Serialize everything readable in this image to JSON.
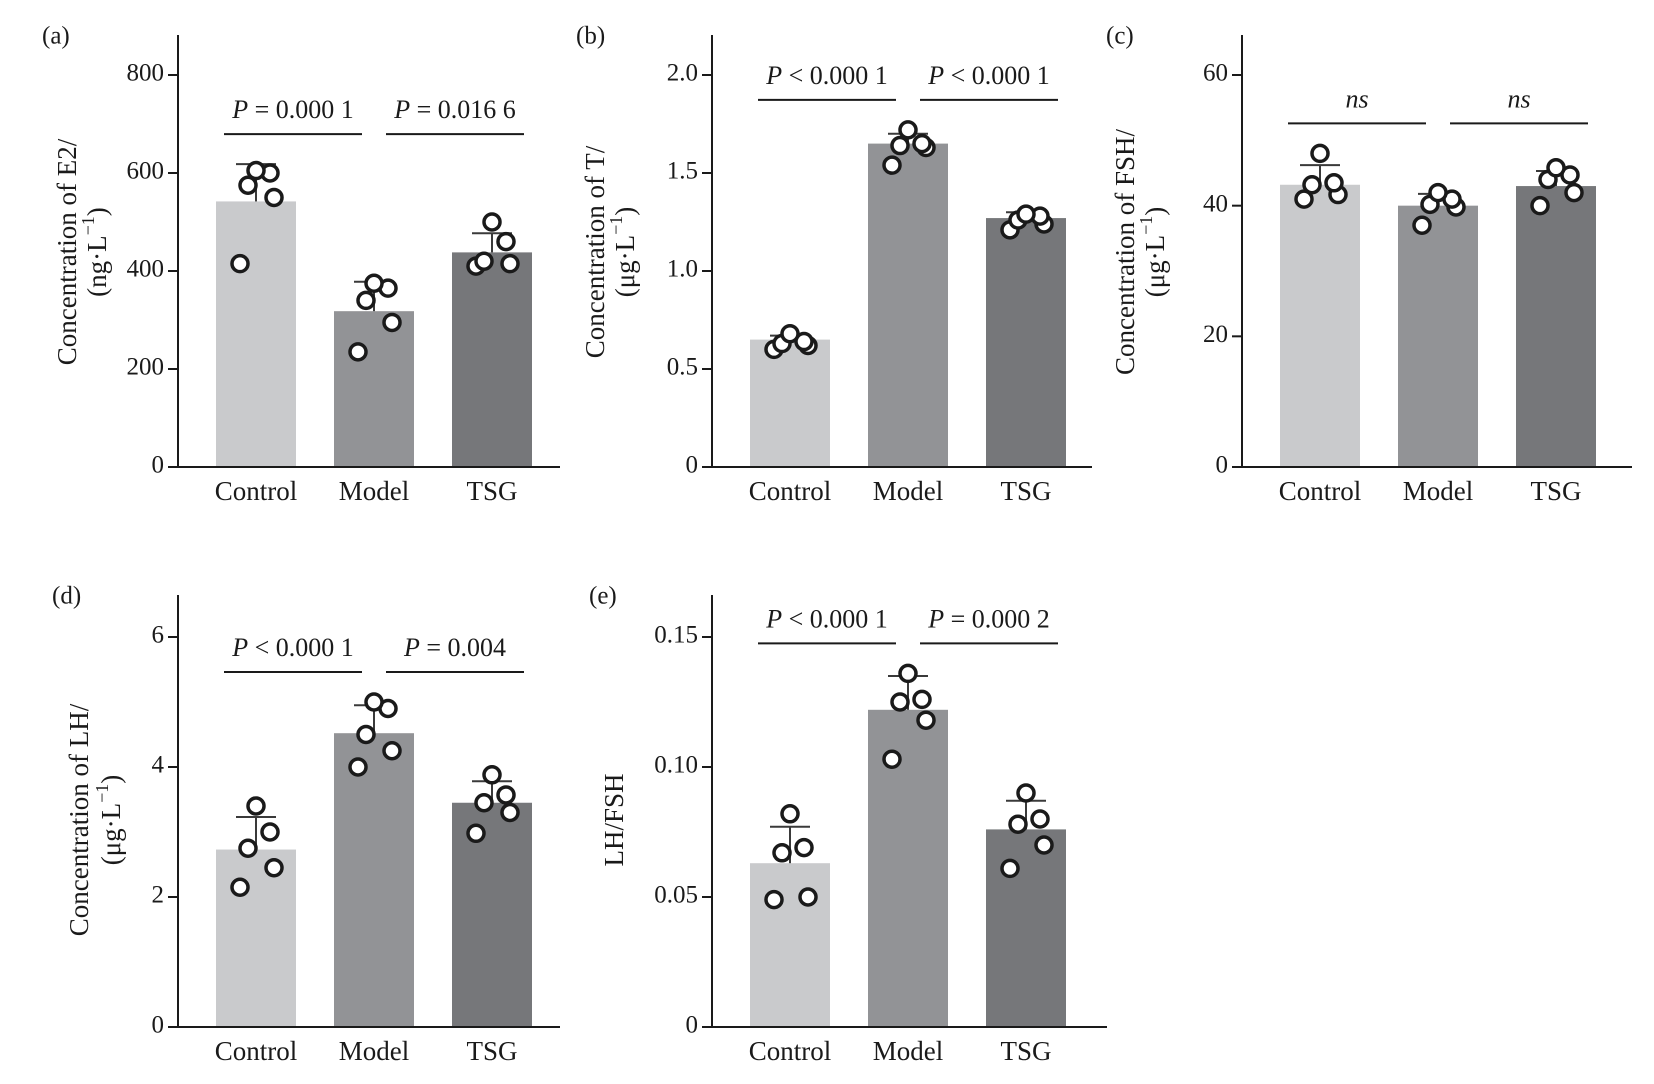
{
  "colors": {
    "Control": "#c9cacc",
    "Model": "#929396",
    "TSG": "#76777a",
    "axis": "#1a1a1a"
  },
  "chart_data": [
    {
      "panel": "(a)",
      "type": "bar",
      "ylabel": "Concentration of E2/",
      "yunit": [
        "(ng·L",
        "−1",
        ")"
      ],
      "ylim": [
        0,
        800
      ],
      "yticks": [
        0,
        200,
        400,
        600,
        800
      ],
      "ytick_labels": [
        "0",
        "200",
        "400",
        "600",
        "800"
      ],
      "categories": [
        "Control",
        "Model",
        "TSG"
      ],
      "values": [
        542,
        318,
        438
      ],
      "error_upper": [
        618,
        378,
        477
      ],
      "points": [
        [
          415,
          550,
          575,
          600,
          605
        ],
        [
          235,
          295,
          340,
          365,
          375
        ],
        [
          410,
          415,
          420,
          460,
          500
        ]
      ],
      "comparisons": [
        {
          "from": 0,
          "to": 1,
          "label": {
            "p": "P",
            "rest": " = 0.000 1"
          }
        },
        {
          "from": 1,
          "to": 2,
          "label": {
            "p": "P",
            "rest": " = 0.016 6"
          }
        }
      ]
    },
    {
      "panel": "(b)",
      "type": "bar",
      "ylabel": "Concentration of T/",
      "yunit": [
        "(μg·L",
        "−1",
        ")"
      ],
      "ylim": [
        0,
        2.0
      ],
      "yticks": [
        0,
        0.5,
        1.0,
        1.5,
        2.0
      ],
      "ytick_labels": [
        "0",
        "0.5",
        "1.0",
        "1.5",
        "2.0"
      ],
      "categories": [
        "Control",
        "Model",
        "TSG"
      ],
      "values": [
        0.65,
        1.65,
        1.27
      ],
      "error_upper": [
        0.67,
        1.7,
        1.3
      ],
      "points": [
        [
          0.6,
          0.62,
          0.63,
          0.64,
          0.68
        ],
        [
          1.54,
          1.63,
          1.64,
          1.65,
          1.72
        ],
        [
          1.21,
          1.24,
          1.26,
          1.28,
          1.29
        ]
      ],
      "comparisons": [
        {
          "from": 0,
          "to": 1,
          "label": {
            "p": "P",
            "rest": " < 0.000 1"
          }
        },
        {
          "from": 1,
          "to": 2,
          "label": {
            "p": "P",
            "rest": " < 0.000 1"
          }
        }
      ]
    },
    {
      "panel": "(c)",
      "type": "bar",
      "ylabel": "Concentration of FSH/",
      "yunit": [
        "(μg·L",
        "−1",
        ")"
      ],
      "ylim": [
        0,
        60
      ],
      "yticks": [
        0,
        20,
        40,
        60
      ],
      "ytick_labels": [
        "0",
        "20",
        "40",
        "60"
      ],
      "categories": [
        "Control",
        "Model",
        "TSG"
      ],
      "values": [
        43.2,
        40.0,
        43.0
      ],
      "error_upper": [
        46.2,
        41.8,
        45.3
      ],
      "points": [
        [
          41.0,
          41.7,
          43.2,
          43.5,
          48.0
        ],
        [
          37.0,
          39.8,
          40.2,
          41.0,
          42.0
        ],
        [
          40.0,
          42.0,
          44.0,
          44.7,
          45.8
        ]
      ],
      "comparisons": [
        {
          "from": 0,
          "to": 1,
          "label": {
            "p": "ns",
            "rest": ""
          }
        },
        {
          "from": 1,
          "to": 2,
          "label": {
            "p": "ns",
            "rest": ""
          }
        }
      ]
    },
    {
      "panel": "(d)",
      "type": "bar",
      "ylabel": "Concentration of LH/",
      "yunit": [
        "(μg·L",
        "−1",
        ")"
      ],
      "ylim": [
        0,
        6
      ],
      "yticks": [
        0,
        2,
        4,
        6
      ],
      "ytick_labels": [
        "0",
        "2",
        "4",
        "6"
      ],
      "categories": [
        "Control",
        "Model",
        "TSG"
      ],
      "values": [
        2.73,
        4.52,
        3.45
      ],
      "error_upper": [
        3.23,
        4.95,
        3.78
      ],
      "points": [
        [
          2.15,
          2.45,
          2.75,
          3.0,
          3.4
        ],
        [
          4.0,
          4.25,
          4.5,
          4.9,
          5.0
        ],
        [
          2.98,
          3.3,
          3.45,
          3.57,
          3.88
        ]
      ],
      "comparisons": [
        {
          "from": 0,
          "to": 1,
          "label": {
            "p": "P",
            "rest": " < 0.000 1"
          }
        },
        {
          "from": 1,
          "to": 2,
          "label": {
            "p": "P",
            "rest": " = 0.004"
          }
        }
      ]
    },
    {
      "panel": "(e)",
      "type": "bar",
      "ylabel": "LH/FSH",
      "yunit": null,
      "ylim": [
        0,
        0.15
      ],
      "yticks": [
        0,
        0.05,
        0.1,
        0.15
      ],
      "ytick_labels": [
        "0",
        "0.05",
        "0.10",
        "0.15"
      ],
      "categories": [
        "Control",
        "Model",
        "TSG"
      ],
      "values": [
        0.063,
        0.122,
        0.076
      ],
      "error_upper": [
        0.077,
        0.135,
        0.087
      ],
      "points": [
        [
          0.049,
          0.05,
          0.067,
          0.069,
          0.082
        ],
        [
          0.103,
          0.118,
          0.125,
          0.126,
          0.136
        ],
        [
          0.061,
          0.07,
          0.078,
          0.08,
          0.09
        ]
      ],
      "comparisons": [
        {
          "from": 0,
          "to": 1,
          "label": {
            "p": "P",
            "rest": " < 0.000 1"
          }
        },
        {
          "from": 1,
          "to": 2,
          "label": {
            "p": "P",
            "rest": " = 0.000 2"
          }
        }
      ]
    }
  ]
}
